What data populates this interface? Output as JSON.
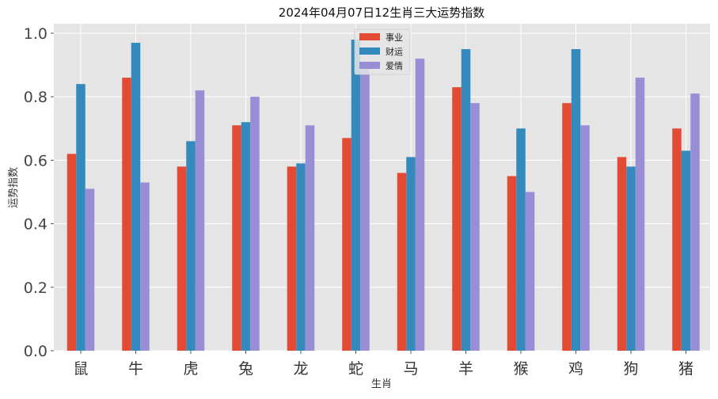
{
  "chart_data": {
    "type": "bar",
    "title": "2024年04月07日12生肖三大运势指数",
    "xlabel": "生肖",
    "ylabel": "运势指数",
    "categories": [
      "鼠",
      "牛",
      "虎",
      "兔",
      "龙",
      "蛇",
      "马",
      "羊",
      "猴",
      "鸡",
      "狗",
      "猪"
    ],
    "series": [
      {
        "name": "事业",
        "color": "#E24A33",
        "values": [
          0.62,
          0.86,
          0.58,
          0.71,
          0.58,
          0.67,
          0.56,
          0.83,
          0.55,
          0.78,
          0.61,
          0.7
        ]
      },
      {
        "name": "财运",
        "color": "#348ABD",
        "values": [
          0.84,
          0.97,
          0.66,
          0.72,
          0.59,
          0.98,
          0.61,
          0.95,
          0.7,
          0.95,
          0.58,
          0.63
        ]
      },
      {
        "name": "爱情",
        "color": "#988ED5",
        "values": [
          0.51,
          0.53,
          0.82,
          0.8,
          0.71,
          0.9,
          0.92,
          0.78,
          0.5,
          0.71,
          0.86,
          0.81
        ]
      }
    ],
    "ylim": [
      0,
      1.0
    ],
    "yticks": [
      "0.0",
      "0.2",
      "0.4",
      "0.6",
      "0.8",
      "1.0"
    ],
    "grid": true,
    "legend_position": "top-center",
    "background_color": "#E5E5E5"
  }
}
